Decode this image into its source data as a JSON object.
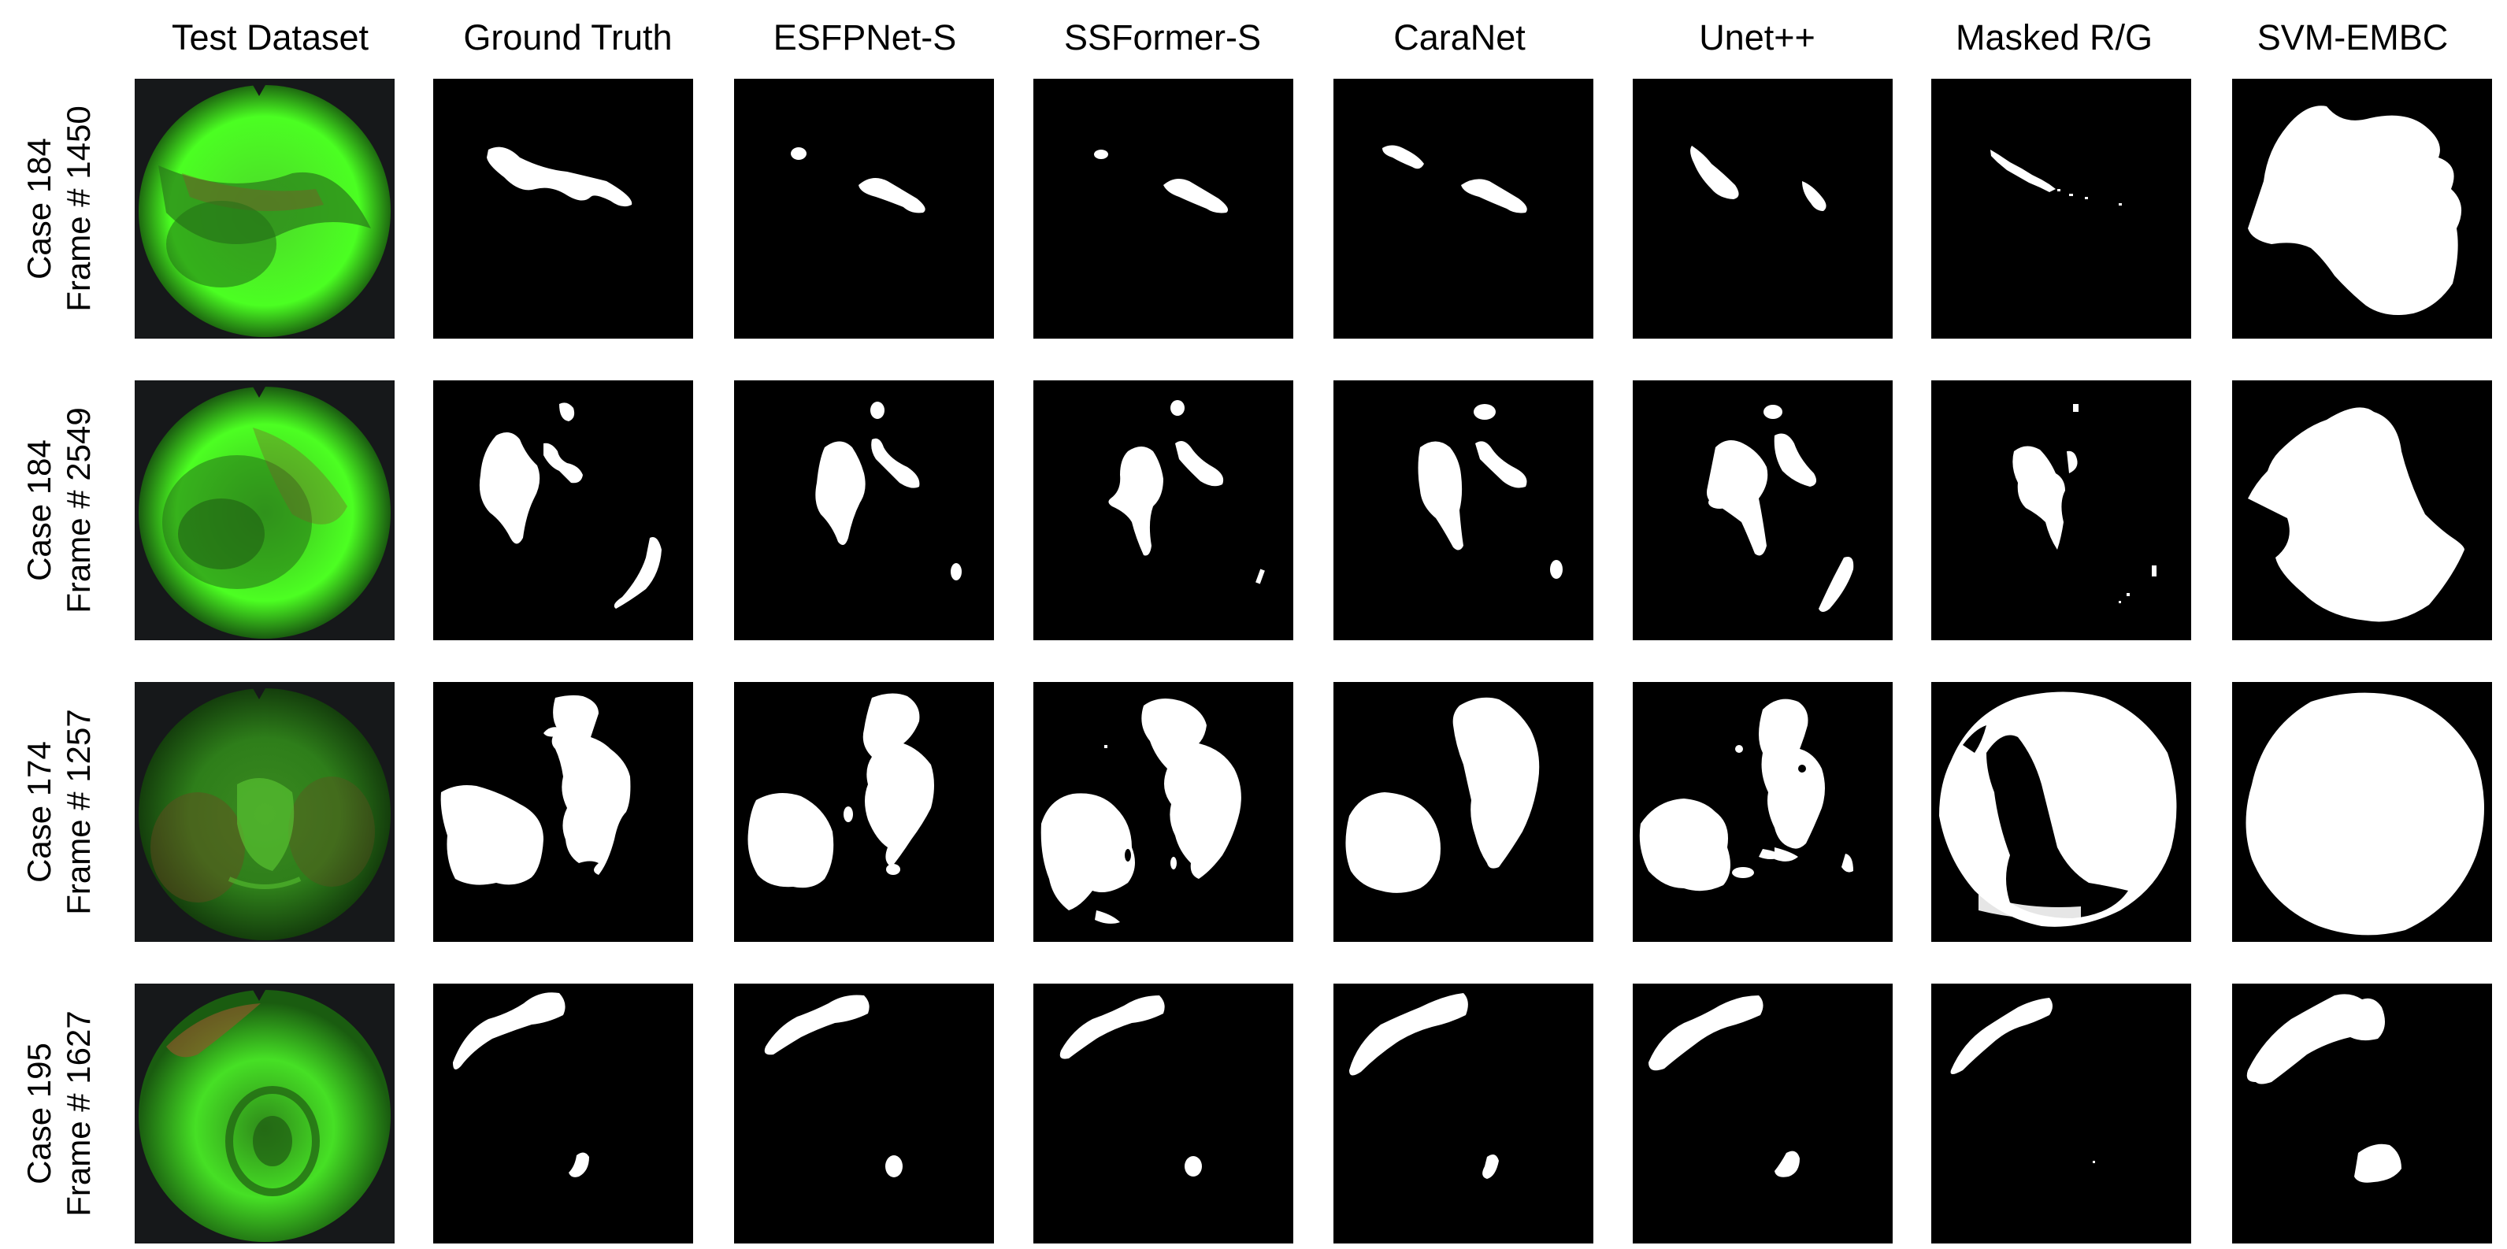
{
  "columns": [
    "Test Dataset",
    "Ground Truth",
    "ESFPNet-S",
    "SSFormer-S",
    "CaraNet",
    "Unet++",
    "Masked R/G",
    "SVM-EMBC"
  ],
  "rows": [
    {
      "case": "Case 184",
      "frame": "Frame # 1450"
    },
    {
      "case": "Case 184",
      "frame": "Frame # 2549"
    },
    {
      "case": "Case 174",
      "frame": "Frame # 1257"
    },
    {
      "case": "Case 195",
      "frame": "Frame # 1627"
    }
  ],
  "colors": {
    "background": "#ffffff",
    "panel_background": "#000000",
    "mask_foreground": "#ffffff",
    "endoscopy_green": "#3cff1e",
    "endoscopy_dark_green": "#1f7a12",
    "endoscopy_reddish": "#7a5a2a"
  }
}
